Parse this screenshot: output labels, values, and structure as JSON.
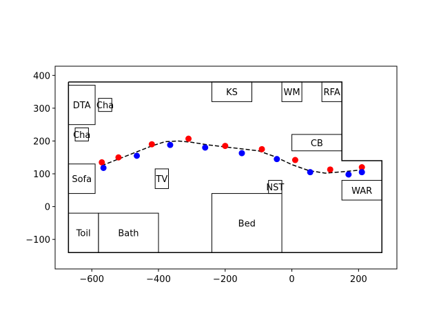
{
  "chart_data": {
    "type": "scatter",
    "xlim": [
      -710,
      315
    ],
    "ylim": [
      -190,
      428
    ],
    "xticks": [
      -600,
      -400,
      -200,
      0,
      200
    ],
    "xtick_labels": [
      "−600",
      "−400",
      "−200",
      "0",
      "200"
    ],
    "yticks": [
      -100,
      0,
      100,
      200,
      300,
      400
    ],
    "ytick_labels": [
      "−100",
      "0",
      "100",
      "200",
      "300",
      "400"
    ],
    "grid": false,
    "floorplan_outline": [
      [
        -670,
        380
      ],
      [
        150,
        380
      ],
      [
        150,
        140
      ],
      [
        270,
        140
      ],
      [
        270,
        -140
      ],
      [
        -670,
        -140
      ],
      [
        -670,
        380
      ]
    ],
    "rooms": [
      {
        "label": "DTA",
        "x": [
          -670,
          -590
        ],
        "y": [
          250,
          370
        ]
      },
      {
        "label": "Cha",
        "x": [
          -580,
          -540
        ],
        "y": [
          290,
          330
        ]
      },
      {
        "label": "Cha",
        "x": [
          -650,
          -610
        ],
        "y": [
          200,
          240
        ]
      },
      {
        "label": "Sofa",
        "x": [
          -670,
          -590
        ],
        "y": [
          40,
          130
        ]
      },
      {
        "label": "TV",
        "x": [
          -410,
          -370
        ],
        "y": [
          55,
          115
        ]
      },
      {
        "label": "KS",
        "x": [
          -240,
          -120
        ],
        "y": [
          320,
          380
        ]
      },
      {
        "label": "WM",
        "x": [
          -30,
          30
        ],
        "y": [
          320,
          380
        ]
      },
      {
        "label": "RFA",
        "x": [
          90,
          150
        ],
        "y": [
          320,
          380
        ]
      },
      {
        "label": "CB",
        "x": [
          0,
          150
        ],
        "y": [
          170,
          220
        ]
      },
      {
        "label": "NST",
        "x": [
          -70,
          -30
        ],
        "y": [
          40,
          80
        ]
      },
      {
        "label": "WAR",
        "x": [
          150,
          270
        ],
        "y": [
          20,
          80
        ]
      },
      {
        "label": "Bed",
        "x": [
          -240,
          -30
        ],
        "y": [
          -140,
          40
        ]
      },
      {
        "label": "Toil",
        "x": [
          -670,
          -580
        ],
        "y": [
          -140,
          -20
        ]
      },
      {
        "label": "Bath",
        "x": [
          -580,
          -400
        ],
        "y": [
          -140,
          -20
        ]
      }
    ],
    "path": {
      "x": [
        -570,
        -520,
        -470,
        -420,
        -380,
        -340,
        -300,
        -250,
        -200,
        -150,
        -100,
        -50,
        0,
        50,
        100,
        150,
        210
      ],
      "y": [
        125,
        145,
        165,
        185,
        198,
        200,
        196,
        188,
        182,
        176,
        170,
        152,
        128,
        110,
        102,
        106,
        112
      ]
    },
    "series": [
      {
        "color": "#ff0000",
        "x": [
          -570,
          -520,
          -420,
          -310,
          -200,
          -90,
          10,
          115,
          210
        ],
        "y": [
          135,
          150,
          190,
          207,
          185,
          175,
          142,
          113,
          120
        ]
      },
      {
        "color": "#0000ff",
        "x": [
          -565,
          -465,
          -365,
          -260,
          -150,
          -45,
          55,
          170,
          210
        ],
        "y": [
          118,
          155,
          188,
          180,
          163,
          145,
          105,
          98,
          105
        ]
      }
    ]
  }
}
